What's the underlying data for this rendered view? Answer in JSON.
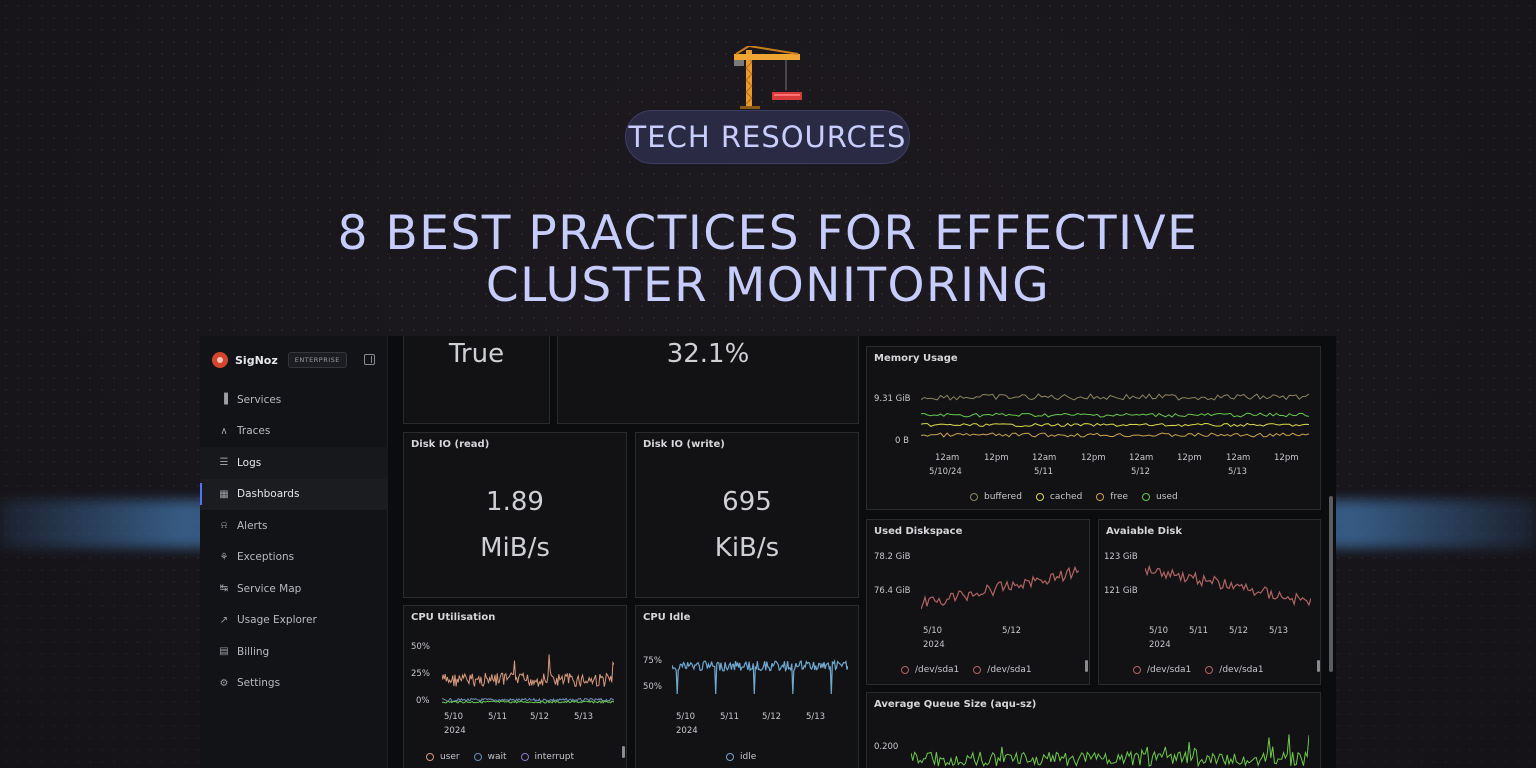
{
  "hero": {
    "badge": "TECH RESOURCES",
    "headline_line1": "8 BEST PRACTICES FOR EFFECTIVE",
    "headline_line2": "CLUSTER MONITORING"
  },
  "app": {
    "brand": {
      "name": "SigNoz",
      "tag": "ENTERPRISE"
    },
    "nav": [
      {
        "label": "Services",
        "icon": "bar-chart-icon"
      },
      {
        "label": "Traces",
        "icon": "traces-icon"
      },
      {
        "label": "Logs",
        "icon": "scroll-icon"
      },
      {
        "label": "Dashboards",
        "icon": "grid-icon"
      },
      {
        "label": "Alerts",
        "icon": "bell-icon"
      },
      {
        "label": "Exceptions",
        "icon": "bug-icon"
      },
      {
        "label": "Service Map",
        "icon": "route-icon"
      },
      {
        "label": "Usage Explorer",
        "icon": "line-chart-icon"
      },
      {
        "label": "Billing",
        "icon": "receipt-icon"
      },
      {
        "label": "Settings",
        "icon": "gear-icon"
      }
    ],
    "active_nav": "Dashboards"
  },
  "panels": {
    "top_left_value": "True",
    "top_mid_value": "32.1%",
    "disk_read": {
      "title": "Disk IO (read)",
      "value": "1.89",
      "unit": "MiB/s"
    },
    "disk_write": {
      "title": "Disk IO (write)",
      "value": "695",
      "unit": "KiB/s"
    },
    "cpu_util": {
      "title": "CPU Utilisation",
      "y_ticks": [
        "50%",
        "25%",
        "0%"
      ],
      "x_ticks": [
        "5/10",
        "5/11",
        "5/12",
        "5/13"
      ],
      "x_year": "2024",
      "legend": [
        "user",
        "wait",
        "interrupt"
      ]
    },
    "cpu_idle": {
      "title": "CPU Idle",
      "y_ticks": [
        "75%",
        "50%"
      ],
      "x_ticks": [
        "5/10",
        "5/11",
        "5/12",
        "5/13"
      ],
      "x_year": "2024",
      "legend": [
        "idle"
      ]
    },
    "memory": {
      "title": "Memory Usage",
      "y_ticks": [
        "9.31 GiB",
        "0 B"
      ],
      "x_ticks": [
        "12am",
        "12pm",
        "12am",
        "12pm",
        "12am",
        "12pm",
        "12am",
        "12pm"
      ],
      "x_dates": [
        "5/10/24",
        "5/11",
        "5/12",
        "5/13"
      ],
      "legend": [
        "buffered",
        "cached",
        "free",
        "used"
      ]
    },
    "used_disk": {
      "title": "Used Diskspace",
      "y_ticks": [
        "78.2 GiB",
        "76.4 GiB"
      ],
      "x_ticks": [
        "5/10",
        "5/12"
      ],
      "x_year": "2024",
      "legend": [
        "/dev/sda1",
        "/dev/sda1"
      ]
    },
    "avail_disk": {
      "title": "Avaiable Disk",
      "y_ticks": [
        "123 GiB",
        "121 GiB"
      ],
      "x_ticks": [
        "5/10",
        "5/11",
        "5/12",
        "5/13"
      ],
      "x_year": "2024",
      "legend": [
        "/dev/sda1",
        "/dev/sda1"
      ]
    },
    "queue": {
      "title": "Average Queue Size (aqu-sz)",
      "y_ticks": [
        "0.200"
      ]
    }
  },
  "colors": {
    "accent": "#4e74f8",
    "user": "#d79a7d",
    "wait": "#6d8fb7",
    "interrupt": "#8a78c8",
    "idle": "#6fa8cf",
    "buffered": "#8a8660",
    "cached": "#d9d94a",
    "free": "#c9a44f",
    "used": "#66c94c",
    "disk": "#b06464",
    "queue": "#6ec94a"
  }
}
